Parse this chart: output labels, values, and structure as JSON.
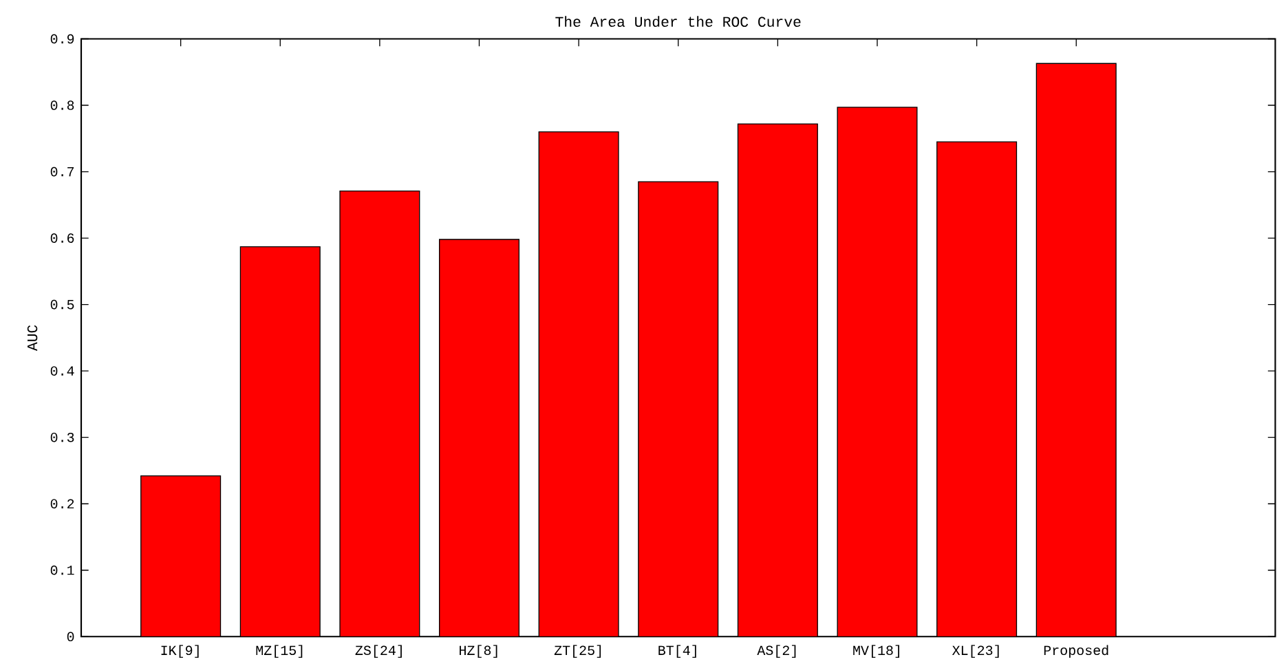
{
  "chart_data": {
    "type": "bar",
    "title": "The Area Under the ROC Curve",
    "ylabel": "AUC",
    "categories": [
      "IK[9]",
      "MZ[15]",
      "ZS[24]",
      "HZ[8]",
      "ZT[25]",
      "BT[4]",
      "AS[2]",
      "MV[18]",
      "XL[23]",
      "Proposed"
    ],
    "values": [
      0.242,
      0.587,
      0.671,
      0.598,
      0.76,
      0.685,
      0.772,
      0.797,
      0.745,
      0.863
    ],
    "color": "#ff0000",
    "ylim": [
      0,
      0.9
    ],
    "yticks": [
      0,
      0.1,
      0.2,
      0.3,
      0.4,
      0.5,
      0.6,
      0.7,
      0.8,
      0.9
    ]
  }
}
